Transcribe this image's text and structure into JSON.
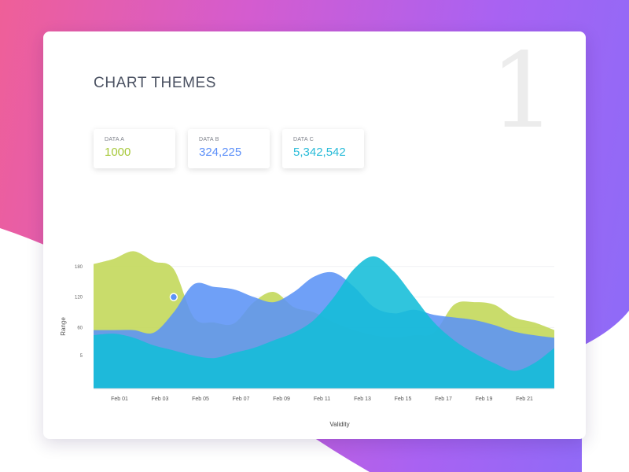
{
  "page": {
    "title": "CHART THEMES",
    "number": "1"
  },
  "stats": [
    {
      "label": "DATA A",
      "value": "1000",
      "color": "#a6c839"
    },
    {
      "label": "DATA B",
      "value": "324,225",
      "color": "#5b8ff9"
    },
    {
      "label": "DATA C",
      "value": "5,342,542",
      "color": "#27bbd8"
    }
  ],
  "chart_data": {
    "type": "area",
    "xlabel": "Validity",
    "ylabel": "Range",
    "categories": [
      "Feb 01",
      "Feb 03",
      "Feb 05",
      "Feb 07",
      "Feb 09",
      "Feb 11",
      "Feb 13",
      "Feb 15",
      "Feb 17",
      "Feb 19",
      "Feb 21"
    ],
    "y_ticks": [
      "5",
      "60",
      "120",
      "180"
    ],
    "ylim": [
      -60,
      240
    ],
    "x": [
      0,
      1,
      2,
      3,
      4,
      5,
      6,
      7,
      8,
      9,
      10,
      11,
      12,
      13,
      14,
      15,
      16,
      17,
      18,
      19,
      20,
      21,
      22,
      23
    ],
    "series": [
      {
        "color": "#c2d757",
        "values": [
          185,
          195,
          210,
          190,
          175,
          80,
          70,
          68,
          110,
          130,
          100,
          90,
          70,
          55,
          45,
          40,
          45,
          50,
          105,
          110,
          105,
          80,
          70,
          55
        ]
      },
      {
        "color": "#5b93f6",
        "values": [
          55,
          55,
          55,
          50,
          90,
          145,
          140,
          135,
          120,
          110,
          130,
          160,
          168,
          140,
          100,
          88,
          95,
          85,
          80,
          75,
          65,
          52,
          45,
          40
        ]
      },
      {
        "color": "#13bdd8",
        "values": [
          45,
          48,
          40,
          25,
          15,
          5,
          0,
          10,
          20,
          35,
          50,
          75,
          120,
          175,
          200,
          170,
          120,
          70,
          35,
          10,
          -10,
          -25,
          -10,
          20
        ]
      }
    ],
    "highlight_point": {
      "series": 1,
      "x": 4,
      "y": 120
    },
    "grid": true
  }
}
